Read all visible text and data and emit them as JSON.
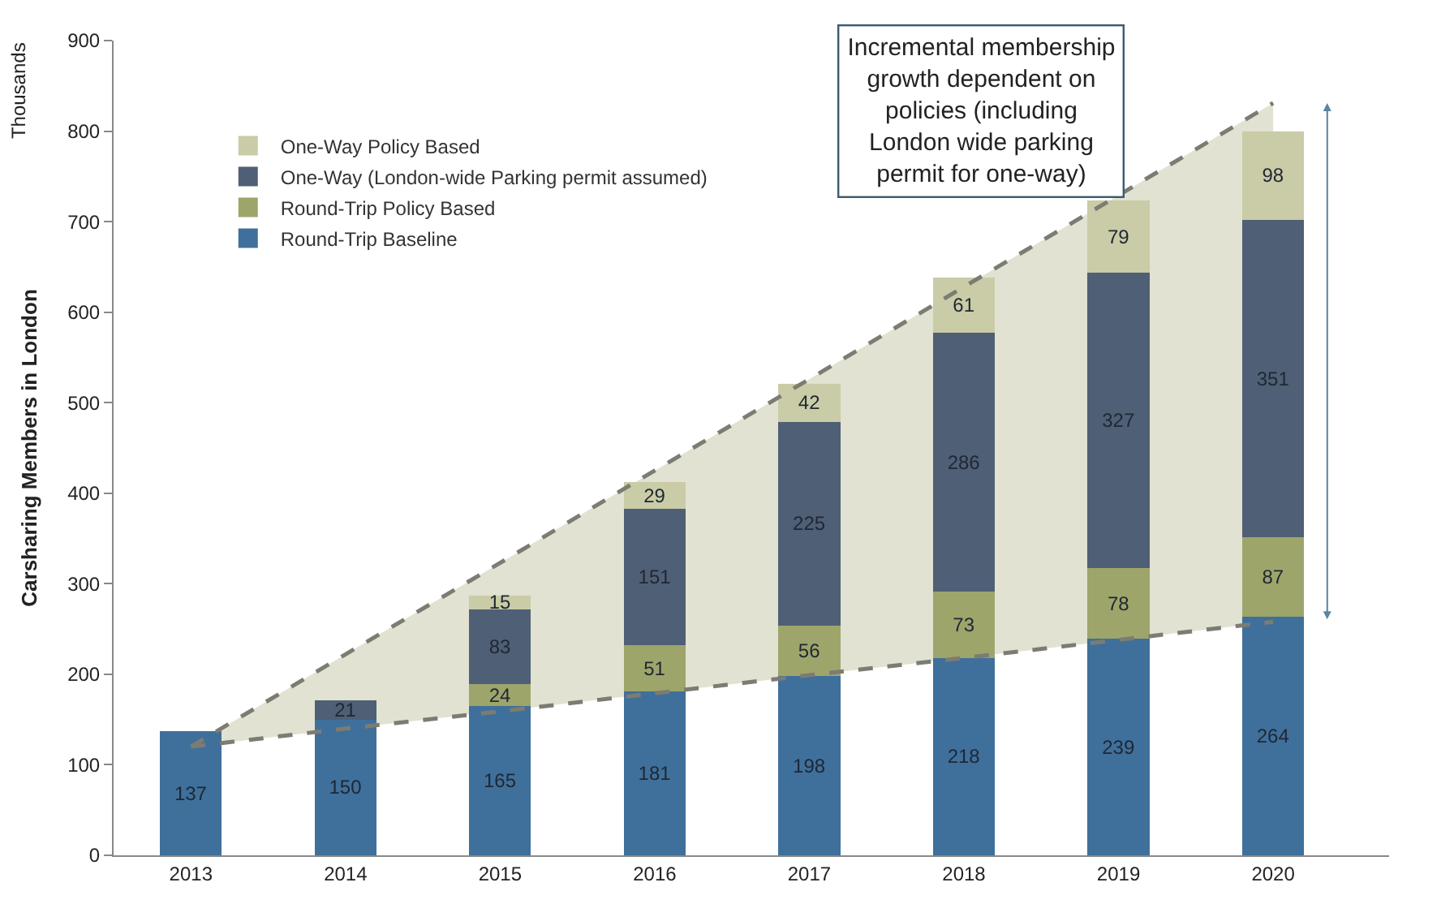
{
  "chart_data": {
    "type": "bar",
    "stacked": true,
    "ylabel": "Carsharing Members in London",
    "categories": [
      "2013",
      "2014",
      "2015",
      "2016",
      "2017",
      "2018",
      "2019",
      "2020"
    ],
    "series": [
      {
        "type": "line",
        "color": "#7c7c73",
        "line_style": "dashed",
        "values": [
          120,
          140,
          159,
          179,
          199,
          218,
          238,
          258
        ]
      },
      {
        "type": "line",
        "color": "#7c7c73",
        "line_style": "dashed",
        "values": [
          120,
          222,
          323,
          425,
          526,
          628,
          729,
          831
        ]
      },
      {
        "name": "Round-Trip Baseline",
        "color": "#3f709b",
        "values": [
          137,
          150,
          165,
          181,
          198,
          218,
          239,
          264
        ],
        "value_labels": [
          "137",
          "150",
          "165",
          "181",
          "198",
          "218",
          "239",
          "264"
        ]
      },
      {
        "name": "Round-Trip Policy Based",
        "color": "#9ea56b",
        "values": [
          null,
          null,
          24,
          51,
          56,
          73,
          78,
          87
        ],
        "value_labels": [
          null,
          null,
          "24",
          "51",
          "56",
          "73",
          "78",
          "87"
        ]
      },
      {
        "name": "One-Way (London-wide Parking permit assumed)",
        "color": "#4f5f75",
        "values": [
          null,
          21,
          83,
          151,
          225,
          286,
          327,
          351
        ],
        "value_labels": [
          null,
          "21",
          "83",
          "151",
          "225",
          "286",
          "327",
          "351"
        ]
      },
      {
        "name": "One-Way Policy Based",
        "color": "#c9cca6",
        "values": [
          null,
          null,
          15,
          29,
          42,
          61,
          79,
          98
        ],
        "value_labels": [
          null,
          null,
          "15",
          "29",
          "42",
          "61",
          "79",
          "98"
        ]
      }
    ],
    "ylim": [
      0,
      900
    ],
    "yticks": [
      0,
      100,
      200,
      300,
      400,
      500,
      600,
      700,
      800,
      900
    ],
    "legend": "top left",
    "annotations": [
      "Thousands",
      "Incremental membership growth dependent on policies (including London wide parking permit for one-way)"
    ]
  }
}
